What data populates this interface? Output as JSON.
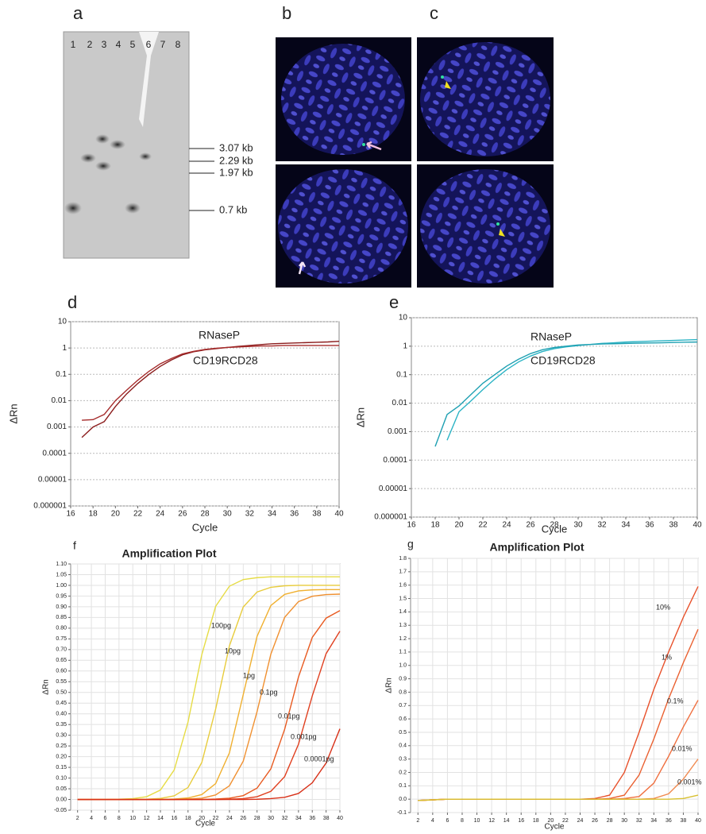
{
  "panel_labels": [
    "a",
    "b",
    "c",
    "d",
    "e",
    "f",
    "g"
  ],
  "gel": {
    "lanes": [
      "1",
      "2",
      "3",
      "4",
      "5",
      "6",
      "7",
      "8"
    ],
    "sizes": [
      "3.07 kb",
      "2.29 kb",
      "1.97 kb",
      "0.7 kb"
    ]
  },
  "chart_data": [
    {
      "type": "line",
      "log_y": true,
      "grid": true,
      "xlabel": "Cycle",
      "ylabel": "ΔRn",
      "x": [
        17,
        18,
        19,
        20,
        21,
        22,
        23,
        24,
        25,
        26,
        27,
        28,
        29,
        30,
        31,
        32,
        33,
        34,
        35,
        36,
        37,
        38,
        39,
        40
      ],
      "xlim": [
        16,
        40
      ],
      "xticks": [
        16,
        18,
        20,
        22,
        24,
        26,
        28,
        30,
        32,
        34,
        36,
        38,
        40
      ],
      "ylim": [
        1e-06,
        10
      ],
      "yticks": [
        1e-06,
        1e-05,
        0.0001,
        0.001,
        0.01,
        0.1,
        1,
        10
      ],
      "series": [
        {
          "name": "RNaseP",
          "color": "#8b1c1c",
          "values": [
            0.0004,
            0.001,
            0.0016,
            0.006,
            0.018,
            0.045,
            0.1,
            0.2,
            0.35,
            0.55,
            0.72,
            0.85,
            0.95,
            1.05,
            1.15,
            1.25,
            1.35,
            1.45,
            1.5,
            1.55,
            1.6,
            1.65,
            1.7,
            1.8
          ]
        },
        {
          "name": "CD19RCD28",
          "color": "#a52a2a",
          "values": [
            0.0018,
            0.0019,
            0.003,
            0.01,
            0.025,
            0.06,
            0.13,
            0.25,
            0.4,
            0.6,
            0.75,
            0.88,
            0.98,
            1.05,
            1.1,
            1.15,
            1.2,
            1.2,
            1.25,
            1.25,
            1.25,
            1.25,
            1.25,
            1.25
          ]
        }
      ]
    },
    {
      "type": "line",
      "log_y": true,
      "grid": true,
      "xlabel": "Cycle",
      "ylabel": "ΔRn",
      "x": [
        18,
        19,
        20,
        21,
        22,
        23,
        24,
        25,
        26,
        27,
        28,
        29,
        30,
        31,
        32,
        33,
        34,
        35,
        36,
        37,
        38,
        39,
        40
      ],
      "xlim": [
        16,
        40
      ],
      "xticks": [
        16,
        18,
        20,
        22,
        24,
        26,
        28,
        30,
        32,
        34,
        36,
        38,
        40
      ],
      "ylim": [
        1e-06,
        10
      ],
      "yticks": [
        1e-06,
        1e-05,
        0.0001,
        0.001,
        0.01,
        0.1,
        1,
        10
      ],
      "series": [
        {
          "name": "RNaseP",
          "color": "#2ab3c4",
          "values": [
            null,
            0.0005,
            0.005,
            0.012,
            0.03,
            0.07,
            0.15,
            0.28,
            0.45,
            0.65,
            0.82,
            0.95,
            1.05,
            1.15,
            1.25,
            1.32,
            1.4,
            1.45,
            1.5,
            1.55,
            1.6,
            1.65,
            1.7
          ]
        },
        {
          "name": "CD19RCD28",
          "color": "#1fa0b2",
          "values": [
            0.0003,
            0.004,
            0.008,
            0.02,
            0.05,
            0.1,
            0.2,
            0.35,
            0.55,
            0.75,
            0.9,
            1.0,
            1.1,
            1.15,
            1.2,
            1.22,
            1.25,
            1.28,
            1.3,
            1.32,
            1.35,
            1.38,
            1.4
          ]
        }
      ]
    },
    {
      "type": "line",
      "log_y": false,
      "grid": true,
      "title": "Amplification Plot",
      "xlabel": "Cycle",
      "ylabel": "ΔRn",
      "x": [
        2,
        4,
        6,
        8,
        10,
        12,
        14,
        16,
        18,
        20,
        22,
        24,
        26,
        28,
        30,
        32,
        34,
        36,
        38,
        40
      ],
      "xlim": [
        1,
        40
      ],
      "xticks": [
        2,
        4,
        6,
        8,
        10,
        12,
        14,
        16,
        18,
        20,
        22,
        24,
        26,
        28,
        30,
        32,
        34,
        36,
        38,
        40
      ],
      "ylim": [
        -0.05,
        1.1
      ],
      "yticks": [
        -0.05,
        {
          "value": 0,
          "label": "0.00"
        },
        0.05,
        {
          "value": 0.1,
          "label": "0.10"
        },
        0.15,
        {
          "value": 0.2,
          "label": "0.20"
        },
        0.25,
        {
          "value": 0.3,
          "label": "0.30"
        },
        0.35,
        {
          "value": 0.4,
          "label": "0.40"
        },
        0.45,
        {
          "value": 0.5,
          "label": "0.50"
        },
        0.55,
        {
          "value": 0.6,
          "label": "0.60"
        },
        0.65,
        {
          "value": 0.7,
          "label": "0.70"
        },
        0.75,
        {
          "value": 0.8,
          "label": "0.80"
        },
        0.85,
        {
          "value": 0.9,
          "label": "0.90"
        },
        0.95,
        {
          "value": 1,
          "label": "1.00"
        },
        1.05,
        {
          "value": 1.1,
          "label": "1.10"
        }
      ],
      "series": [
        {
          "name": "100pg",
          "color": "#e6dc46",
          "values": [
            0,
            0,
            0,
            0.001,
            0.004,
            0.013,
            0.044,
            0.138,
            0.362,
            0.677,
            0.902,
            0.996,
            1.027,
            1.036,
            1.04,
            1.04,
            1.04,
            1.04,
            1.04,
            1.04
          ]
        },
        {
          "name": "10pg",
          "color": "#e8cc3c",
          "values": [
            0,
            0,
            0,
            0,
            0,
            0.001,
            0.005,
            0.017,
            0.056,
            0.173,
            0.422,
            0.718,
            0.899,
            0.969,
            0.991,
            0.998,
            1.0,
            1.0,
            1.0,
            1.0
          ]
        },
        {
          "name": "1pg",
          "color": "#f0b030",
          "values": [
            0,
            0,
            0,
            0,
            0,
            0,
            0,
            0.002,
            0.007,
            0.023,
            0.074,
            0.218,
            0.49,
            0.762,
            0.906,
            0.958,
            0.974,
            0.979,
            0.98,
            0.98
          ]
        },
        {
          "name": "0.1pg",
          "color": "#f09030",
          "values": [
            0,
            0,
            0,
            0,
            0,
            0,
            0,
            0,
            0.002,
            0.006,
            0.021,
            0.064,
            0.179,
            0.41,
            0.679,
            0.851,
            0.924,
            0.949,
            0.957,
            0.959
          ]
        },
        {
          "name": "0.01pg",
          "color": "#e85a20",
          "values": [
            0,
            0,
            0,
            0,
            0,
            0,
            0,
            0,
            0,
            0,
            0.002,
            0.006,
            0.018,
            0.053,
            0.143,
            0.328,
            0.572,
            0.757,
            0.847,
            0.882
          ]
        },
        {
          "name": "0.001pg",
          "color": "#e04020",
          "values": [
            0,
            0,
            0,
            0,
            0,
            0,
            0,
            0,
            0,
            0,
            0,
            0.001,
            0.004,
            0.013,
            0.038,
            0.107,
            0.258,
            0.484,
            0.681,
            0.786
          ]
        },
        {
          "name": "0.0001pg",
          "color": "#d83018",
          "values": [
            0,
            0,
            0,
            0,
            0,
            0,
            0,
            0,
            0,
            0,
            0,
            0,
            0,
            0.001,
            0.004,
            0.01,
            0.028,
            0.078,
            0.17,
            0.33
          ]
        }
      ]
    },
    {
      "type": "line",
      "log_y": false,
      "grid": true,
      "title": "Amplification Plot",
      "xlabel": "Cycle",
      "ylabel": "ΔRn",
      "x": [
        2,
        4,
        6,
        8,
        10,
        12,
        14,
        16,
        18,
        20,
        22,
        24,
        26,
        28,
        30,
        32,
        34,
        36,
        38,
        40
      ],
      "xlim": [
        1,
        40
      ],
      "xticks": [
        2,
        4,
        6,
        8,
        10,
        12,
        14,
        16,
        18,
        20,
        22,
        24,
        26,
        28,
        30,
        32,
        34,
        36,
        38,
        40
      ],
      "ylim": [
        -0.1,
        1.8
      ],
      "yticks": [
        -0.1,
        {
          "value": 0,
          "label": "0.0"
        },
        0.1,
        0.2,
        0.3,
        0.4,
        0.5,
        0.6,
        0.7,
        0.8,
        0.9,
        {
          "value": 1,
          "label": "1.0"
        },
        1.1,
        1.2,
        1.3,
        1.4,
        1.5,
        1.6,
        1.7,
        1.8
      ],
      "series": [
        {
          "name": "10%",
          "color": "#e8502a",
          "values": [
            -0.01,
            -0.005,
            0,
            0,
            0,
            0,
            0,
            0,
            0,
            0,
            0,
            0,
            0.005,
            0.03,
            0.2,
            0.5,
            0.82,
            1.1,
            1.36,
            1.59
          ]
        },
        {
          "name": "1%",
          "color": "#ea6030",
          "values": [
            -0.01,
            -0.005,
            0,
            0,
            0,
            0,
            0,
            0,
            0,
            0,
            0,
            0,
            0,
            0.005,
            0.03,
            0.18,
            0.45,
            0.75,
            1.02,
            1.27
          ]
        },
        {
          "name": "0.1%",
          "color": "#f07040",
          "values": [
            -0.01,
            -0.005,
            0,
            0,
            0,
            0,
            0,
            0,
            0,
            0,
            0,
            0,
            0,
            0,
            0.005,
            0.02,
            0.12,
            0.32,
            0.54,
            0.74
          ]
        },
        {
          "name": "0.01%",
          "color": "#f08a50",
          "values": [
            -0.01,
            -0.005,
            0,
            0,
            0,
            0,
            0,
            0,
            0,
            0,
            0,
            0,
            0,
            0,
            0,
            0,
            0.005,
            0.04,
            0.15,
            0.3
          ]
        },
        {
          "name": "0.001%",
          "color": "#d8c030",
          "values": [
            -0.01,
            -0.005,
            0,
            0,
            0,
            0,
            0,
            0,
            0,
            0,
            0,
            0,
            0,
            0,
            0,
            0,
            0,
            0,
            0.005,
            0.03
          ]
        }
      ]
    }
  ]
}
